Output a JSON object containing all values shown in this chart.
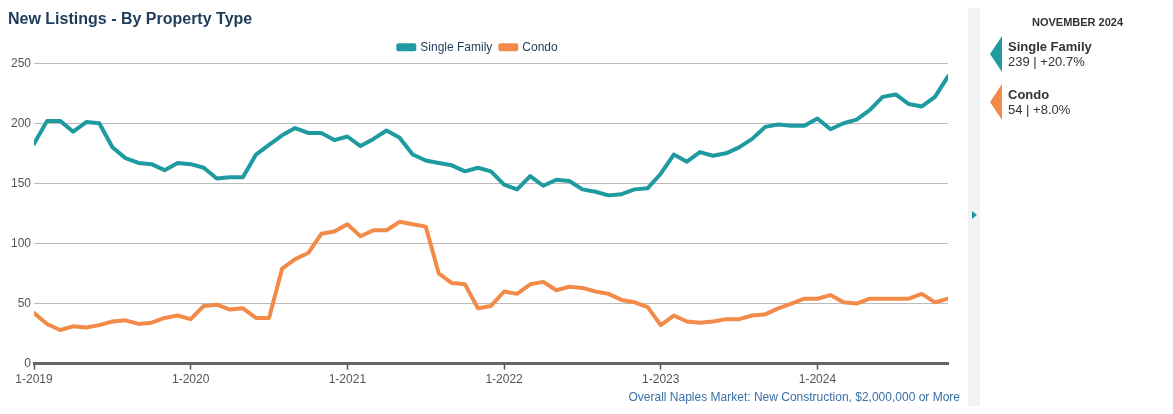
{
  "chart_data": {
    "type": "line",
    "title": "New Listings - By Property Type",
    "x": [
      "2019-01",
      "2019-02",
      "2019-03",
      "2019-04",
      "2019-05",
      "2019-06",
      "2019-07",
      "2019-08",
      "2019-09",
      "2019-10",
      "2019-11",
      "2019-12",
      "2020-01",
      "2020-02",
      "2020-03",
      "2020-04",
      "2020-05",
      "2020-06",
      "2020-07",
      "2020-08",
      "2020-09",
      "2020-10",
      "2020-11",
      "2020-12",
      "2021-01",
      "2021-02",
      "2021-03",
      "2021-04",
      "2021-05",
      "2021-06",
      "2021-07",
      "2021-08",
      "2021-09",
      "2021-10",
      "2021-11",
      "2021-12",
      "2022-01",
      "2022-02",
      "2022-03",
      "2022-04",
      "2022-05",
      "2022-06",
      "2022-07",
      "2022-08",
      "2022-09",
      "2022-10",
      "2022-11",
      "2022-12",
      "2023-01",
      "2023-02",
      "2023-03",
      "2023-04",
      "2023-05",
      "2023-06",
      "2023-07",
      "2023-08",
      "2023-09",
      "2023-10",
      "2023-11",
      "2023-12",
      "2024-01",
      "2024-02",
      "2024-03",
      "2024-04",
      "2024-05",
      "2024-06",
      "2024-07",
      "2024-08",
      "2024-09",
      "2024-10",
      "2024-11"
    ],
    "series": [
      {
        "name": "Single Family",
        "color": "#1f9aa0",
        "values": [
          183,
          202,
          202,
          193,
          201,
          200,
          180,
          171,
          167,
          166,
          161,
          167,
          166,
          163,
          154,
          155,
          155,
          174,
          182,
          190,
          196,
          192,
          192,
          186,
          189,
          181,
          187,
          194,
          188,
          174,
          169,
          167,
          165,
          160,
          163,
          160,
          149,
          145,
          156,
          148,
          153,
          152,
          145,
          143,
          140,
          141,
          145,
          146,
          158,
          174,
          168,
          176,
          173,
          175,
          180,
          187,
          197,
          199,
          198,
          198,
          204,
          195,
          200,
          203,
          211,
          222,
          224,
          216,
          214,
          222,
          239
        ]
      },
      {
        "name": "Condo",
        "color": "#f28b4a",
        "values": [
          42,
          33,
          28,
          31,
          30,
          32,
          35,
          36,
          33,
          34,
          38,
          40,
          37,
          48,
          49,
          45,
          46,
          38,
          38,
          79,
          87,
          92,
          108,
          110,
          116,
          106,
          111,
          111,
          118,
          116,
          114,
          75,
          67,
          66,
          46,
          48,
          60,
          58,
          66,
          68,
          61,
          64,
          63,
          60,
          58,
          53,
          51,
          47,
          32,
          40,
          35,
          34,
          35,
          37,
          37,
          40,
          41,
          46,
          50,
          54,
          54,
          57,
          51,
          50,
          54,
          54,
          54,
          54,
          58,
          51,
          54
        ]
      }
    ],
    "xlim": [
      "2019-01",
      "2024-11"
    ],
    "xticks": [
      {
        "value": "2019-01",
        "label": "1-2019"
      },
      {
        "value": "2020-01",
        "label": "1-2020"
      },
      {
        "value": "2021-01",
        "label": "1-2021"
      },
      {
        "value": "2022-01",
        "label": "1-2022"
      },
      {
        "value": "2023-01",
        "label": "1-2023"
      },
      {
        "value": "2024-01",
        "label": "1-2024"
      }
    ],
    "ylim": [
      0,
      250
    ],
    "yticks": [
      0,
      50,
      100,
      150,
      200,
      250
    ],
    "grid": "y",
    "legend": "top",
    "marker": "none",
    "line_style": "solid",
    "annotations": [
      "Overall Naples Market: New Construction, $2,000,000 or More",
      "NOVEMBER 2024",
      "239 | +20.7%",
      "54 | +8.0%"
    ]
  }
}
